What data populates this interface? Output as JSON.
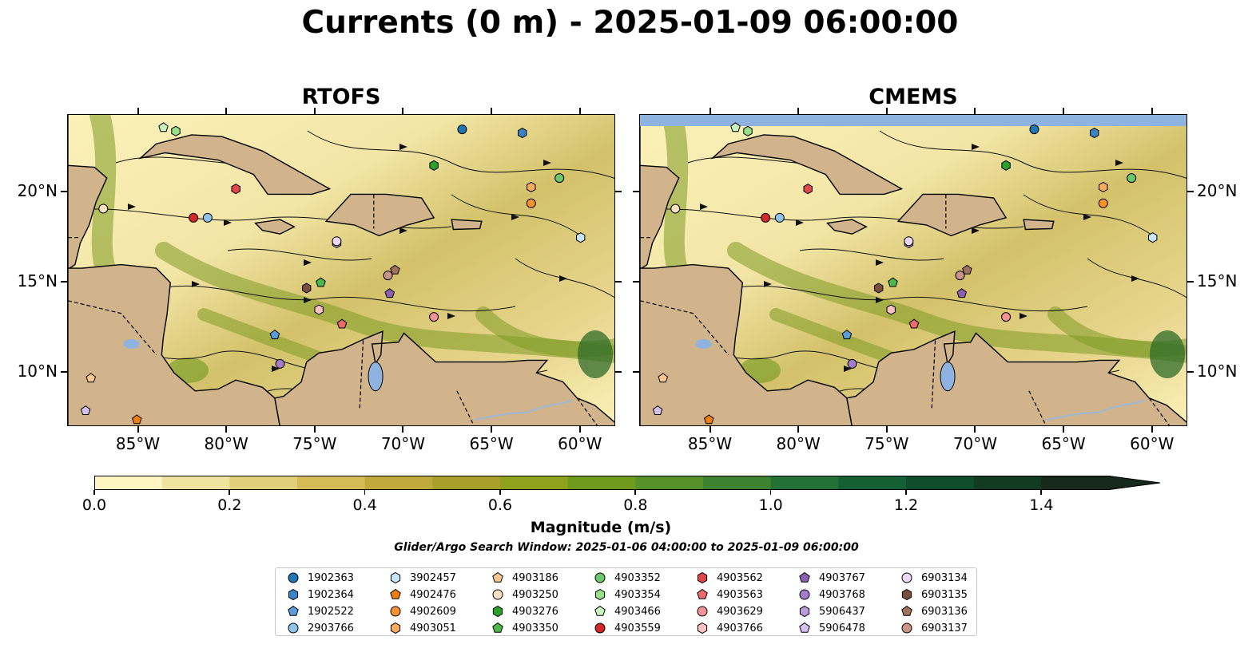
{
  "title": "Currents (0 m) - 2025-01-09 06:00:00",
  "panels": [
    {
      "title": "RTOFS"
    },
    {
      "title": "CMEMS"
    }
  ],
  "axes": {
    "lon_labels": [
      "85°W",
      "80°W",
      "75°W",
      "70°W",
      "65°W",
      "60°W"
    ],
    "lat_labels": [
      "20°N",
      "15°N",
      "10°N"
    ],
    "lon_range": [
      -89,
      -58
    ],
    "lat_range": [
      7,
      24.3
    ]
  },
  "colorbar": {
    "label": "Magnitude (m/s)",
    "ticks": [
      "0.0",
      "0.2",
      "0.4",
      "0.6",
      "0.8",
      "1.0",
      "1.2",
      "1.4"
    ],
    "range": [
      0,
      1.5
    ],
    "extend": "max",
    "colors": [
      "#fdf6c3",
      "#f0e3a0",
      "#e3cf7a",
      "#d4bb55",
      "#c2a93c",
      "#a9a02c",
      "#8ea21d",
      "#6f9a1e",
      "#56912a",
      "#3d8230",
      "#237134",
      "#145f34",
      "#0f4d2d",
      "#123b22",
      "#17291a"
    ]
  },
  "colors": {
    "land": "#d2b48c",
    "lake": "#8fb3e0",
    "river": "#9db8d8",
    "ocean_low": "#fbf1b8",
    "ocean_mid": "#d3c26a",
    "ocean_high": "#1e6b2e"
  },
  "search_window": "Glider/Argo Search Window: 2025-01-06 04:00:00 to 2025-01-09 06:00:00",
  "legend": [
    {
      "id": "1902363",
      "shape": "circle",
      "color": "#1f77b4"
    },
    {
      "id": "1902364",
      "shape": "hexagon",
      "color": "#3a83c4"
    },
    {
      "id": "1902522",
      "shape": "pentagon",
      "color": "#5a9bd8"
    },
    {
      "id": "2903766",
      "shape": "circle",
      "color": "#8fc3ec"
    },
    {
      "id": "3902457",
      "shape": "hexagon",
      "color": "#c6e6f7"
    },
    {
      "id": "4902476",
      "shape": "pentagon",
      "color": "#f07f0f"
    },
    {
      "id": "4902609",
      "shape": "circle",
      "color": "#f7922e"
    },
    {
      "id": "4903051",
      "shape": "hexagon",
      "color": "#f9ab5e"
    },
    {
      "id": "4903186",
      "shape": "pentagon",
      "color": "#fbc690"
    },
    {
      "id": "4903250",
      "shape": "circle",
      "color": "#fde0c1"
    },
    {
      "id": "4903276",
      "shape": "hexagon",
      "color": "#2ca02c"
    },
    {
      "id": "4903350",
      "shape": "pentagon",
      "color": "#4cb84c"
    },
    {
      "id": "4903352",
      "shape": "circle",
      "color": "#6cc86c"
    },
    {
      "id": "4903354",
      "shape": "hexagon",
      "color": "#98df8a"
    },
    {
      "id": "4903466",
      "shape": "pentagon",
      "color": "#c8f2c0"
    },
    {
      "id": "4903559",
      "shape": "circle",
      "color": "#d62728"
    },
    {
      "id": "4903562",
      "shape": "hexagon",
      "color": "#e0474a"
    },
    {
      "id": "4903563",
      "shape": "pentagon",
      "color": "#ea6a6e"
    },
    {
      "id": "4903629",
      "shape": "circle",
      "color": "#f29396"
    },
    {
      "id": "4903766",
      "shape": "hexagon",
      "color": "#fbc2c2"
    },
    {
      "id": "4903767",
      "shape": "pentagon",
      "color": "#8c5fb4"
    },
    {
      "id": "4903768",
      "shape": "circle",
      "color": "#a37ccb"
    },
    {
      "id": "5906437",
      "shape": "hexagon",
      "color": "#bb9ade"
    },
    {
      "id": "5906478",
      "shape": "pentagon",
      "color": "#d5c0ef"
    },
    {
      "id": "6903134",
      "shape": "circle",
      "color": "#eed8f6"
    },
    {
      "id": "6903135",
      "shape": "hexagon",
      "color": "#7a4e3c"
    },
    {
      "id": "6903136",
      "shape": "pentagon",
      "color": "#a0715c"
    },
    {
      "id": "6903137",
      "shape": "circle",
      "color": "#c89588"
    }
  ],
  "floats": [
    {
      "id": "1902363",
      "lon": -66.7,
      "lat": 23.5
    },
    {
      "id": "1902364",
      "lon": -63.3,
      "lat": 23.3
    },
    {
      "id": "1902522",
      "lon": -77.3,
      "lat": 12.1
    },
    {
      "id": "2903766",
      "lon": -81.1,
      "lat": 18.6
    },
    {
      "id": "3902457",
      "lon": -60.0,
      "lat": 17.5
    },
    {
      "id": "4902476",
      "lon": -85.1,
      "lat": 7.4
    },
    {
      "id": "4902609",
      "lon": -62.8,
      "lat": 19.4
    },
    {
      "id": "4903051",
      "lon": -62.8,
      "lat": 20.3
    },
    {
      "id": "4903186",
      "lon": -87.7,
      "lat": 9.7
    },
    {
      "id": "4903250",
      "lon": -87.0,
      "lat": 19.1
    },
    {
      "id": "4903276",
      "lon": -68.3,
      "lat": 21.5
    },
    {
      "id": "4903350",
      "lon": -74.7,
      "lat": 15.0
    },
    {
      "id": "4903352",
      "lon": -61.2,
      "lat": 20.8
    },
    {
      "id": "4903354",
      "lon": -82.9,
      "lat": 23.4
    },
    {
      "id": "4903466",
      "lon": -83.6,
      "lat": 23.6
    },
    {
      "id": "4903559",
      "lon": -81.9,
      "lat": 18.6
    },
    {
      "id": "4903562",
      "lon": -79.5,
      "lat": 20.2
    },
    {
      "id": "4903563",
      "lon": -73.5,
      "lat": 12.7
    },
    {
      "id": "4903629",
      "lon": -68.3,
      "lat": 13.1
    },
    {
      "id": "4903766",
      "lon": -74.8,
      "lat": 13.5
    },
    {
      "id": "4903767",
      "lon": -70.8,
      "lat": 14.4
    },
    {
      "id": "4903768",
      "lon": -77.0,
      "lat": 10.5
    },
    {
      "id": "5906437",
      "lon": -73.8,
      "lat": 17.2
    },
    {
      "id": "5906478",
      "lon": -88.0,
      "lat": 7.9
    },
    {
      "id": "6903134",
      "lon": -73.8,
      "lat": 17.3
    },
    {
      "id": "6903135",
      "lon": -75.5,
      "lat": 14.7
    },
    {
      "id": "6903136",
      "lon": -70.5,
      "lat": 15.7
    },
    {
      "id": "6903137",
      "lon": -70.9,
      "lat": 15.4
    }
  ]
}
